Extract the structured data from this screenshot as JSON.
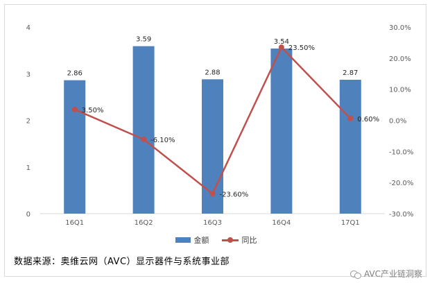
{
  "chart_data": {
    "type": "bar",
    "categories": [
      "16Q1",
      "16Q2",
      "16Q3",
      "16Q4",
      "17Q1"
    ],
    "series": [
      {
        "name": "金额",
        "type": "bar",
        "axis": "left",
        "color": "#4f81bd",
        "values": [
          2.86,
          3.59,
          2.88,
          3.54,
          2.87
        ],
        "labels": [
          "2.86",
          "3.59",
          "2.88",
          "3.54",
          "2.87"
        ]
      },
      {
        "name": "同比",
        "type": "line",
        "axis": "right",
        "color": "#c0504d",
        "values": [
          3.5,
          -6.1,
          -23.6,
          23.5,
          0.6
        ],
        "labels": [
          "3.50%",
          "-6.10%",
          "-23.60%",
          "23.50%",
          "0.60%"
        ]
      }
    ],
    "y_left": {
      "min": 0,
      "max": 4,
      "ticks": [
        "0",
        "1",
        "2",
        "3",
        "4"
      ]
    },
    "y_right": {
      "min": -30,
      "max": 30,
      "ticks": [
        "-30.0%",
        "-20.0%",
        "-10.0%",
        "0.0%",
        "10.0%",
        "20.0%",
        "30.0%"
      ]
    },
    "grid": false,
    "legend": "bottom"
  },
  "legend": {
    "bar_label": "金额",
    "line_label": "同比"
  },
  "source": "数据来源：奥维云网（AVC）显示器件与系统事业部",
  "watermark": "AVC产业链洞察"
}
